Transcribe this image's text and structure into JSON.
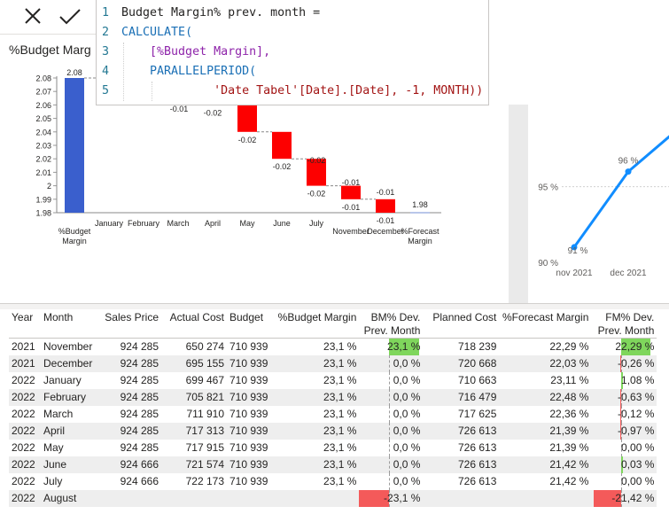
{
  "formula_bar": {
    "cancel_icon": "close-icon",
    "commit_icon": "checkmark-icon",
    "lines": [
      {
        "n": "1",
        "text": "Budget Margin% prev. month ="
      },
      {
        "n": "2",
        "text": "CALCULATE("
      },
      {
        "n": "3",
        "text": "[%Budget Margin],"
      },
      {
        "n": "4",
        "text": "PARALLELPERIOD("
      },
      {
        "n": "5",
        "text": "'Date Tabel'[Date].[Date], -1, MONTH))"
      }
    ]
  },
  "waterfall_visual": {
    "title": "%Budget Marg",
    "chart_data": {
      "type": "waterfall",
      "categories": [
        "%Budget Margin",
        "January",
        "February",
        "March",
        "April",
        "May",
        "June",
        "July",
        "November",
        "December",
        "%Forecast Margin"
      ],
      "start": 2.08,
      "end": 1.98,
      "steps": [
        {
          "category": "April",
          "start": 2.08,
          "end": 2.06,
          "label": "-0.02"
        },
        {
          "category": "May",
          "start": 2.06,
          "end": 2.04,
          "label": "-0.02"
        },
        {
          "category": "June",
          "start": 2.04,
          "end": 2.02,
          "label": "-0.02"
        },
        {
          "category": "July",
          "start": 2.02,
          "end": 2.0,
          "label": "-0.02"
        },
        {
          "category": "November",
          "start": 2.0,
          "end": 1.99,
          "label": "-0.01"
        },
        {
          "category": "December",
          "start": 1.99,
          "end": 1.98,
          "label": "-0.01"
        }
      ],
      "extra_labels": [
        "-0.01",
        "-0.02"
      ],
      "y_ticks": [
        "2.08",
        "2.07",
        "2.06",
        "2.05",
        "2.04",
        "2.03",
        "2.02",
        "2.01",
        "2",
        "1.99",
        "1.98"
      ],
      "ylim": [
        1.98,
        2.08
      ],
      "start_label": "2.08",
      "end_label": "1.98",
      "colors": {
        "total": "#3a5fcd",
        "decrease": "#fd0000",
        "end": "#b9c6ea"
      }
    }
  },
  "line_visual": {
    "chart_data": {
      "type": "line",
      "x": [
        "nov 2021",
        "dec 2021"
      ],
      "values": [
        91,
        96
      ],
      "data_labels": [
        "91 %",
        "96 %"
      ],
      "y_ticks": [
        "95 %",
        "90 %"
      ],
      "ylim": [
        90,
        97.5
      ],
      "color": "#118dff"
    }
  },
  "table": {
    "columns": [
      "Year",
      "Month",
      "Sales Price",
      "Actual Cost",
      "Budget",
      "%Budget Margin",
      "BM% Dev.\nPrev. Month",
      "Planned Cost",
      "%Forecast Margin",
      "FM% Dev.\nPrev. Month"
    ],
    "rows": [
      {
        "year": "2021",
        "month": "November",
        "sales": "924 285",
        "actual": "650 274",
        "budget": "710 939",
        "bm": "23,1 %",
        "bmdev": "23,1 %",
        "bmdev_v": 23.1,
        "planned": "718 239",
        "fm": "22,29 %",
        "fmdev": "22,29 %",
        "fmdev_v": 22.29
      },
      {
        "year": "2021",
        "month": "December",
        "sales": "924 285",
        "actual": "695 155",
        "budget": "710 939",
        "bm": "23,1 %",
        "bmdev": "0,0 %",
        "bmdev_v": 0,
        "planned": "720 668",
        "fm": "22,03 %",
        "fmdev": "-0,26 %",
        "fmdev_v": -0.26
      },
      {
        "year": "2022",
        "month": "January",
        "sales": "924 285",
        "actual": "699 467",
        "budget": "710 939",
        "bm": "23,1 %",
        "bmdev": "0,0 %",
        "bmdev_v": 0,
        "planned": "710 663",
        "fm": "23,11 %",
        "fmdev": "1,08 %",
        "fmdev_v": 1.08
      },
      {
        "year": "2022",
        "month": "February",
        "sales": "924 285",
        "actual": "705 821",
        "budget": "710 939",
        "bm": "23,1 %",
        "bmdev": "0,0 %",
        "bmdev_v": 0,
        "planned": "716 479",
        "fm": "22,48 %",
        "fmdev": "-0,63 %",
        "fmdev_v": -0.63
      },
      {
        "year": "2022",
        "month": "March",
        "sales": "924 285",
        "actual": "711 910",
        "budget": "710 939",
        "bm": "23,1 %",
        "bmdev": "0,0 %",
        "bmdev_v": 0,
        "planned": "717 625",
        "fm": "22,36 %",
        "fmdev": "-0,12 %",
        "fmdev_v": -0.12
      },
      {
        "year": "2022",
        "month": "April",
        "sales": "924 285",
        "actual": "717 313",
        "budget": "710 939",
        "bm": "23,1 %",
        "bmdev": "0,0 %",
        "bmdev_v": 0,
        "planned": "726 613",
        "fm": "21,39 %",
        "fmdev": "-0,97 %",
        "fmdev_v": -0.97
      },
      {
        "year": "2022",
        "month": "May",
        "sales": "924 285",
        "actual": "717 915",
        "budget": "710 939",
        "bm": "23,1 %",
        "bmdev": "0,0 %",
        "bmdev_v": 0,
        "planned": "726 613",
        "fm": "21,39 %",
        "fmdev": "0,00 %",
        "fmdev_v": 0
      },
      {
        "year": "2022",
        "month": "June",
        "sales": "924 666",
        "actual": "721 574",
        "budget": "710 939",
        "bm": "23,1 %",
        "bmdev": "0,0 %",
        "bmdev_v": 0,
        "planned": "726 613",
        "fm": "21,42 %",
        "fmdev": "0,03 %",
        "fmdev_v": 0.03
      },
      {
        "year": "2022",
        "month": "July",
        "sales": "924 666",
        "actual": "722 173",
        "budget": "710 939",
        "bm": "23,1 %",
        "bmdev": "0,0 %",
        "bmdev_v": 0,
        "planned": "726 613",
        "fm": "21,42 %",
        "fmdev": "0,00 %",
        "fmdev_v": 0
      },
      {
        "year": "2022",
        "month": "August",
        "sales": "",
        "actual": "",
        "budget": "",
        "bm": "",
        "bmdev": "-23,1 %",
        "bmdev_v": -23.1,
        "planned": "",
        "fm": "",
        "fmdev": "-21,42 %",
        "fmdev_v": -21.42
      }
    ],
    "colors": {
      "positive": "#7fd65c",
      "negative": "#f45a5a"
    }
  }
}
